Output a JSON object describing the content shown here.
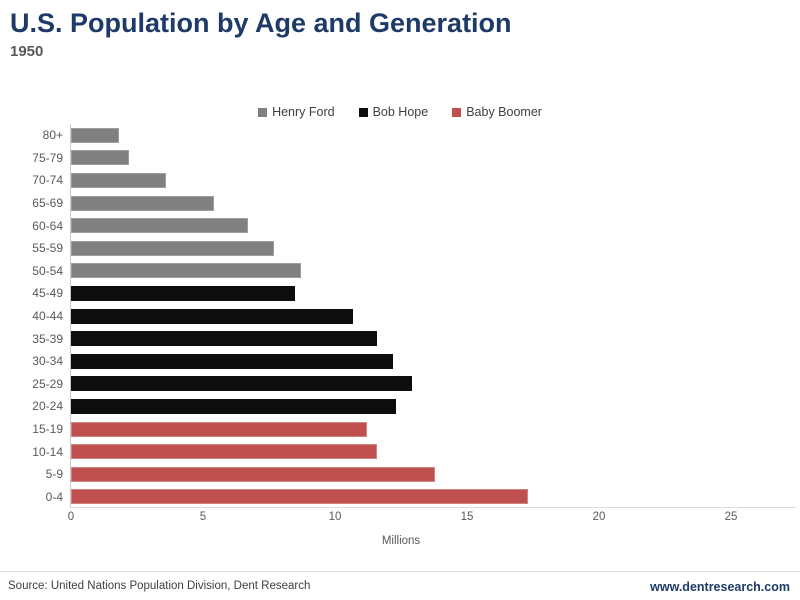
{
  "header": {
    "title": "U.S. Population by Age and Generation",
    "subtitle": "1950"
  },
  "chart_data": {
    "type": "bar",
    "orientation": "horizontal",
    "title": "U.S. Population by Age and Generation",
    "subtitle": "1950",
    "xlabel": "Millions",
    "ylabel": "",
    "xlim": [
      0,
      25
    ],
    "xticks": [
      0,
      5,
      10,
      15,
      20,
      25
    ],
    "grid": false,
    "legend_position": "top-center",
    "legend": [
      {
        "name": "Henry Ford",
        "color": "#808080",
        "border": "#9e9e9e"
      },
      {
        "name": "Bob Hope",
        "color": "#0d0d0d",
        "border": "#0d0d0d"
      },
      {
        "name": "Baby Boomer",
        "color": "#c0504d",
        "border": "#cf8482"
      }
    ],
    "rows": [
      {
        "category": "80+",
        "series": "Henry Ford",
        "value": 1.8
      },
      {
        "category": "75-79",
        "series": "Henry Ford",
        "value": 2.2
      },
      {
        "category": "70-74",
        "series": "Henry Ford",
        "value": 3.6
      },
      {
        "category": "65-69",
        "series": "Henry Ford",
        "value": 5.4
      },
      {
        "category": "60-64",
        "series": "Henry Ford",
        "value": 6.7
      },
      {
        "category": "55-59",
        "series": "Henry Ford",
        "value": 7.7
      },
      {
        "category": "50-54",
        "series": "Henry Ford",
        "value": 8.7
      },
      {
        "category": "45-49",
        "series": "Bob Hope",
        "value": 8.5
      },
      {
        "category": "40-44",
        "series": "Bob Hope",
        "value": 10.7
      },
      {
        "category": "35-39",
        "series": "Bob Hope",
        "value": 11.6
      },
      {
        "category": "30-34",
        "series": "Bob Hope",
        "value": 12.2
      },
      {
        "category": "25-29",
        "series": "Bob Hope",
        "value": 12.9
      },
      {
        "category": "20-24",
        "series": "Bob Hope",
        "value": 12.3
      },
      {
        "category": "15-19",
        "series": "Baby Boomer",
        "value": 11.2
      },
      {
        "category": "10-14",
        "series": "Baby Boomer",
        "value": 11.6
      },
      {
        "category": "5-9",
        "series": "Baby Boomer",
        "value": 13.8
      },
      {
        "category": "0-4",
        "series": "Baby Boomer",
        "value": 17.3
      }
    ]
  },
  "footer": {
    "source": "Source: United Nations Population Division, Dent Research",
    "website": "www.dentresearch.com"
  },
  "colors": {
    "title_text": "#1e3a68",
    "subtitle_text": "#595959",
    "axis_line": "#c9c9c9",
    "tick_text": "#595959",
    "henry_ford": "#808080",
    "bob_hope": "#0d0d0d",
    "baby_boomer": "#c0504d"
  }
}
